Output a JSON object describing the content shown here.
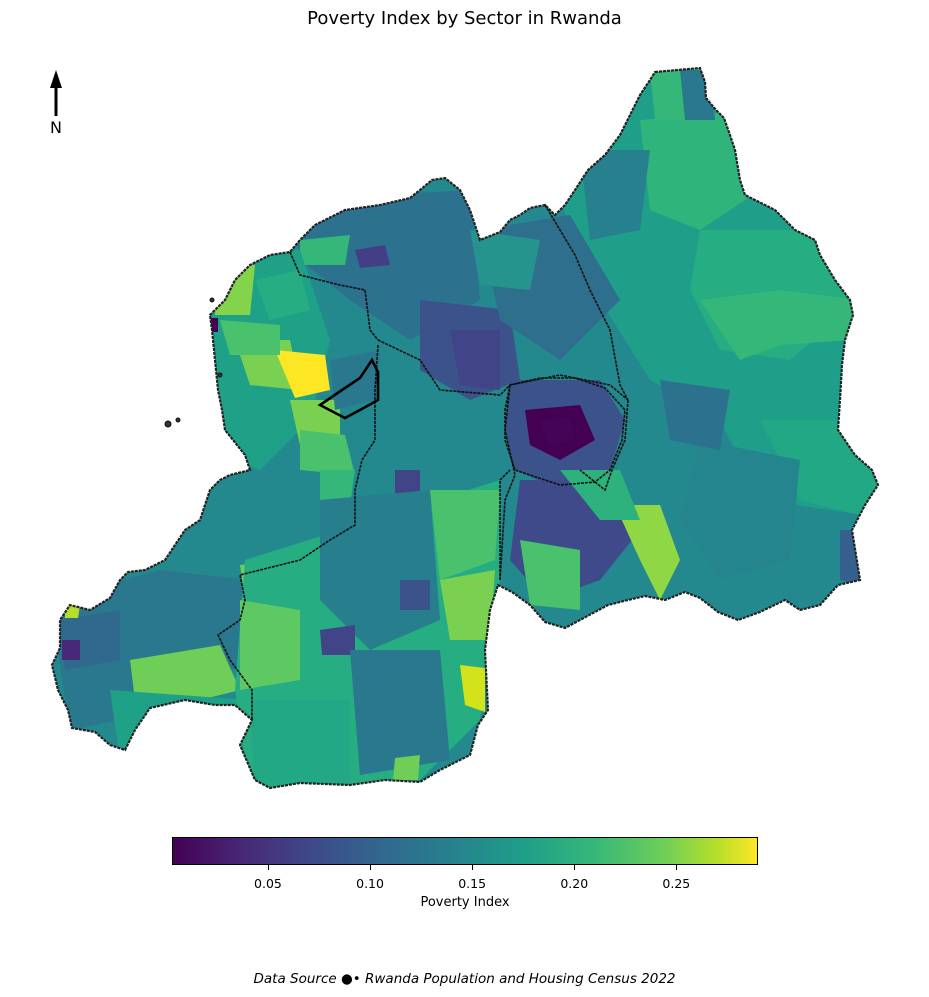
{
  "title": "Poverty Index by Sector in Rwanda",
  "north_arrow": {
    "label": "N"
  },
  "colorbar": {
    "label": "Poverty Index",
    "colormap": "viridis",
    "range": [
      0.003,
      0.29
    ],
    "ticks": [
      "0.05",
      "0.10",
      "0.15",
      "0.20",
      "0.25"
    ]
  },
  "source": "Data Source ●• Rwanda Population and Housing Census 2022",
  "colors": {
    "border": "#222222",
    "province_border": "#000000",
    "low": "#440154",
    "high": "#fde725"
  }
}
